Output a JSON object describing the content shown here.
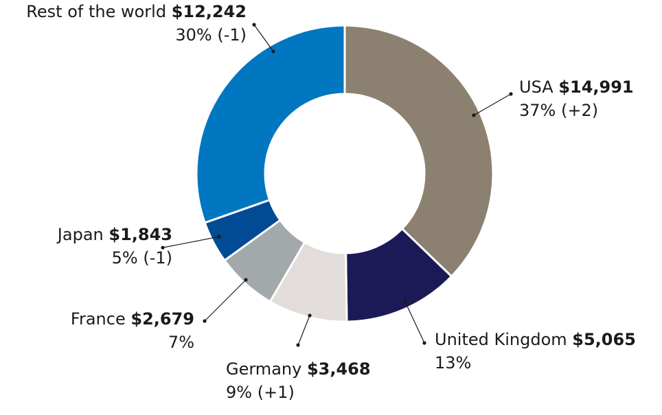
{
  "chart_data": {
    "type": "pie",
    "variant": "donut",
    "start": "12 o'clock, clockwise",
    "slices": [
      {
        "name": "USA",
        "amount": "$14,991",
        "value": 14991,
        "pct_label": "37% (+2)",
        "color": "#8c8170"
      },
      {
        "name": "United Kingdom",
        "amount": "$5,065",
        "value": 5065,
        "pct_label": "13%",
        "color": "#1c1a56"
      },
      {
        "name": "Germany",
        "amount": "$3,468",
        "value": 3468,
        "pct_label": "9% (+1)",
        "color": "#e2dcda"
      },
      {
        "name": "France",
        "amount": "$2,679",
        "value": 2679,
        "pct_label": "7%",
        "color": "#a3a8ab"
      },
      {
        "name": "Japan",
        "amount": "$1,843",
        "value": 1843,
        "pct_label": "5%  (-1)",
        "color": "#004b93"
      },
      {
        "name": "Rest of the world",
        "amount": "$12,242",
        "value": 12242,
        "pct_label": "30% (-1)",
        "color": "#0077c0"
      }
    ]
  }
}
